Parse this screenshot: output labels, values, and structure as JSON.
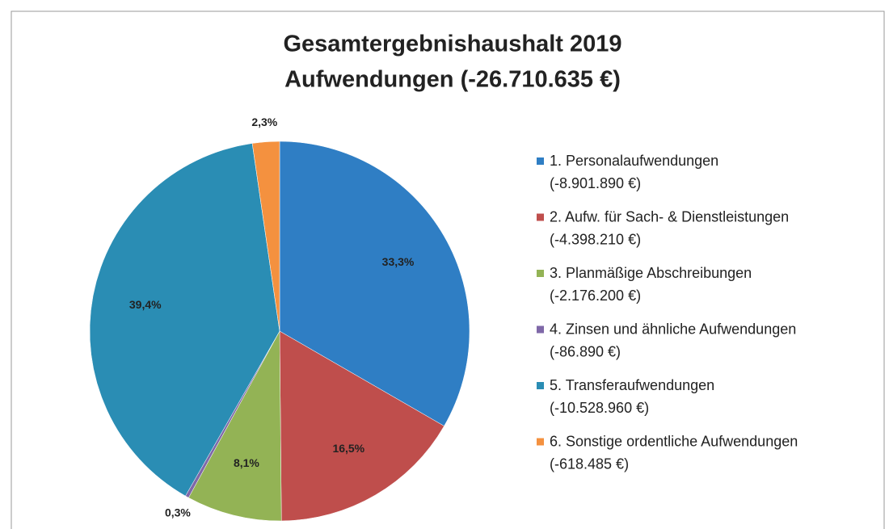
{
  "chart_data": {
    "type": "pie",
    "title": "Gesamtergebnishaushalt  2019",
    "subtitle": "Aufwendungen (-26.710.635 €)",
    "categories": [
      "1. Personalaufwendungen",
      "2. Aufw. für Sach- & Dienstleistungen",
      "3. Planmäßige Abschreibungen",
      "4. Zinsen und ähnliche Aufwendungen",
      "5. Transferaufwendungen",
      "6. Sonstige ordentliche Aufwendungen"
    ],
    "category_details": [
      "(-8.901.890 €)",
      "(-4.398.210 €)",
      "(-2.176.200 €)",
      "(-86.890 €)",
      "(-10.528.960 €)",
      "(-618.485 €)"
    ],
    "values": [
      33.3,
      16.5,
      8.1,
      0.3,
      39.4,
      2.3
    ],
    "value_labels": [
      "33,3%",
      "16,5%",
      "8,1%",
      "0,3%",
      "39,4%",
      "2,3%"
    ],
    "colors": [
      "#2f7ec4",
      "#bf4e4c",
      "#93b355",
      "#7f68a8",
      "#2a8db4",
      "#f4913f"
    ],
    "legend": "right"
  }
}
